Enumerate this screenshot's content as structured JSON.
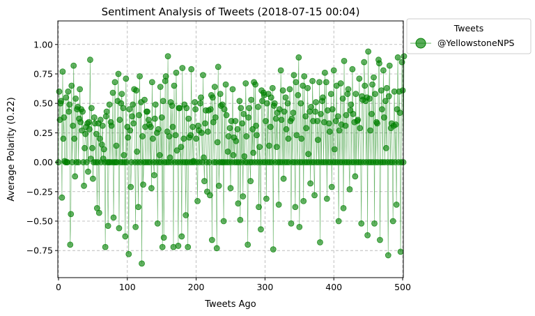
{
  "chart_data": {
    "type": "line",
    "title": "Sentiment Analysis of Tweets (2018-07-15 00:04)",
    "xlabel": "Tweets Ago",
    "ylabel": "Average Polarity (0.22)",
    "xlim": [
      -1,
      501
    ],
    "ylim": [
      -0.98,
      1.2
    ],
    "xticks": [
      0,
      100,
      200,
      300,
      400,
      500
    ],
    "yticks": [
      -0.75,
      -0.5,
      -0.25,
      0.0,
      0.25,
      0.5,
      0.75,
      1.0
    ],
    "ytick_labels": [
      "−0.75",
      "−0.50",
      "−0.25",
      "0.00",
      "0.25",
      "0.50",
      "0.75",
      "1.00"
    ],
    "grid": true,
    "legend": {
      "title": "Tweets",
      "placement": "outside-top-right"
    },
    "series": [
      {
        "name": "@YellowstoneNPS",
        "color": "#008000",
        "marker": "circle",
        "x_start": 0,
        "x_step": 1,
        "values": [
          0,
          0.6,
          0.36,
          0.5,
          0.52,
          -0.3,
          0.77,
          0.2,
          0.38,
          0.01,
          0,
          0.55,
          0,
          0,
          0.6,
          0.43,
          0.49,
          -0.7,
          -0.44,
          0.65,
          0,
          0.31,
          0.82,
          0.2,
          -0.12,
          0.54,
          0,
          0.45,
          0.47,
          0,
          0.37,
          0.62,
          0.34,
          0.45,
          0.27,
          0.43,
          0,
          -0.2,
          0.12,
          0.24,
          0.3,
          0,
          0.33,
          -0.08,
          0.34,
          0.28,
          0.87,
          0.03,
          0.46,
          0.12,
          -0.14,
          0,
          0.38,
          0.33,
          0,
          0.24,
          -0.39,
          0,
          0.33,
          -0.43,
          0.2,
          0.36,
          0,
          0.15,
          0.31,
          0.03,
          0.11,
          0,
          -0.72,
          0.39,
          0.43,
          0,
          -0.54,
          0,
          0.49,
          0,
          0.34,
          0.31,
          0,
          0.59,
          -0.47,
          0,
          0.68,
          0,
          0.14,
          0,
          0.52,
          0.75,
          -0.56,
          0.36,
          0,
          0.5,
          0.58,
          0,
          0.46,
          0.06,
          0,
          -0.63,
          0.71,
          0,
          0.3,
          0.21,
          -0.78,
          0.45,
          0.27,
          -0.21,
          0,
          0.39,
          0.49,
          0.33,
          0.62,
          0,
          -0.55,
          0.61,
          0.09,
          0,
          -0.38,
          0.4,
          0.73,
          0,
          0.51,
          -0.86,
          0.22,
          -0.19,
          0,
          0.53,
          0.3,
          0,
          0.43,
          0.43,
          0,
          0.36,
          0.32,
          0,
          0.3,
          -0.22,
          0.68,
          0.2,
          0,
          -0.11,
          0.37,
          0.49,
          0,
          0.25,
          -0.52,
          0.28,
          0,
          0.06,
          0.64,
          0,
          0.38,
          -0.72,
          0.52,
          -0.64,
          0,
          0.69,
          0.73,
          0,
          0.26,
          0.9,
          0,
          0.22,
          0.04,
          0.51,
          0,
          0.48,
          0.3,
          -0.72,
          0.65,
          0,
          0.23,
          0.76,
          0.1,
          0,
          -0.71,
          0.46,
          0.46,
          0,
          0.13,
          -0.63,
          0.8,
          0,
          0.2,
          0.49,
          0,
          -0.45,
          0.46,
          0,
          -0.72,
          0.37,
          0.21,
          0,
          0.23,
          0.79,
          0,
          0.3,
          0.01,
          0,
          0.51,
          0.45,
          0.2,
          0,
          -0.33,
          0.31,
          0.27,
          0,
          0.5,
          0.55,
          0.25,
          0,
          0.74,
          0.04,
          -0.16,
          0.33,
          0.44,
          0,
          -0.25,
          0.26,
          0.44,
          0,
          -0.28,
          0.45,
          0.57,
          -0.66,
          0.55,
          0.34,
          0,
          0.64,
          0.38,
          0,
          -0.73,
          0.17,
          0.81,
          -0.2,
          0,
          0.58,
          0.48,
          0,
          0.49,
          0,
          -0.5,
          0.45,
          0,
          0.66,
          0.4,
          0,
          0.09,
          0.22,
          0,
          0.29,
          -0.22,
          0.35,
          0,
          0.62,
          0.06,
          0.21,
          0,
          0.35,
          0.18,
          0,
          0.28,
          -0.35,
          0,
          0.52,
          -0.49,
          0.46,
          0,
          0.33,
          -0.29,
          0.41,
          0.05,
          0,
          0.67,
          0.22,
          0,
          -0.7,
          0.38,
          0.46,
          0,
          -0.16,
          0.53,
          0,
          0.28,
          0.08,
          0.68,
          0,
          0.66,
          0.31,
          0.23,
          0,
          0.47,
          -0.38,
          0.13,
          0,
          -0.57,
          0.61,
          0.52,
          0,
          0.59,
          0.57,
          0,
          0.35,
          -0.31,
          0.5,
          0,
          0.58,
          0.14,
          0,
          0.3,
          0.55,
          0,
          0.63,
          -0.74,
          0.48,
          0.5,
          0,
          0.37,
          0.13,
          0.42,
          0,
          -0.36,
          0.45,
          0,
          0.78,
          0.36,
          0,
          0.61,
          -0.14,
          0.43,
          0,
          0.55,
          0.28,
          0,
          0.5,
          0.2,
          0,
          0.62,
          0.35,
          -0.52,
          0.37,
          0,
          0.42,
          0.74,
          0,
          -0.38,
          0.68,
          0.23,
          0,
          0.57,
          0.89,
          -0.55,
          0,
          0.5,
          0.2,
          0,
          0.65,
          -0.33,
          0.73,
          0,
          0.39,
          0.29,
          0,
          0.63,
          0.07,
          0,
          0.43,
          -0.18,
          0.47,
          0,
          0.69,
          0.35,
          0,
          -0.28,
          0.43,
          0.51,
          0,
          0.35,
          0.19,
          0,
          0.68,
          -0.68,
          0.41,
          0,
          0.52,
          0.55,
          0,
          0.34,
          0.76,
          0,
          0.68,
          -0.31,
          0.44,
          0,
          0.33,
          0.26,
          0,
          0.58,
          -0.21,
          0.45,
          0,
          0.78,
          0.11,
          0,
          0.35,
          0.65,
          0,
          0.39,
          -0.5,
          0.27,
          0,
          0.67,
          0.32,
          0,
          0.54,
          -0.39,
          0.86,
          0,
          0.31,
          0.4,
          0,
          0.58,
          0.62,
          0,
          -0.23,
          0.44,
          0.49,
          0,
          0.79,
          0.41,
          0,
          0.34,
          -0.12,
          0.58,
          0,
          0.35,
          0.36,
          0,
          0.71,
          0.29,
          0,
          -0.52,
          0.56,
          0.53,
          0,
          0.85,
          0.65,
          0.52,
          0,
          0.55,
          -0.62,
          0.94,
          0,
          0.54,
          0.27,
          0,
          0.41,
          0.66,
          0,
          0.72,
          -0.52,
          0.58,
          0,
          0.34,
          0.33,
          0,
          0.87,
          0.84,
          -0.66,
          0,
          0.61,
          0.45,
          0,
          0.78,
          0.38,
          0,
          0.52,
          0.12,
          0.63,
          0,
          -0.79,
          0.56,
          0.82,
          0,
          0.29,
          0.33,
          0,
          -0.5,
          0.31,
          0.6,
          0,
          0.32,
          -0.36,
          0.45,
          0.89,
          0,
          0.6,
          0.42,
          -0.76,
          0,
          0.85,
          0.61,
          0,
          0.9
        ]
      }
    ]
  }
}
